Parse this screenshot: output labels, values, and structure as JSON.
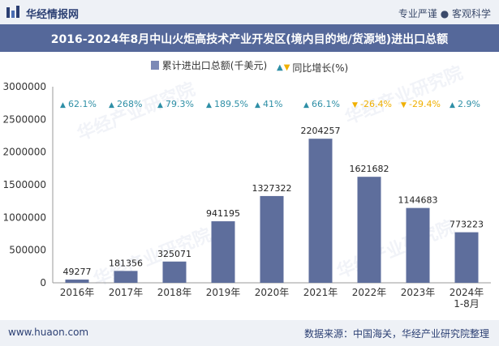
{
  "header": {
    "brand": "华经情报网",
    "tagline": "专业严谨 ● 客观科学"
  },
  "watermark": "华经产业研究院",
  "chart_data": {
    "type": "bar",
    "title": "2016-2024年8月中山火炬高技术产业开发区(境内目的地/货源地)进出口总额",
    "categories": [
      "2016年",
      "2017年",
      "2018年",
      "2019年",
      "2020年",
      "2021年",
      "2022年",
      "2023年",
      "2024年\n1-8月"
    ],
    "series": [
      {
        "name": "累计进出口总额(千美元)",
        "values": [
          49277,
          181356,
          325071,
          941195,
          1327322,
          2204257,
          1621682,
          1144683,
          773223
        ],
        "value_labels": [
          "49277",
          "181356",
          "325071",
          "941195",
          "1327322",
          "2204257",
          "1621682",
          "1144683",
          "773223"
        ],
        "color": "#5e6e9c"
      }
    ],
    "growth": {
      "name": "同比增长(%)",
      "values": [
        62.1,
        268,
        79.3,
        189.5,
        41,
        66.1,
        -26.4,
        -29.4,
        2.9
      ],
      "labels": [
        "62.1%",
        "268%",
        "79.3%",
        "189.5%",
        "41%",
        "66.1%",
        "-26.4%",
        "-29.4%",
        "2.9%"
      ],
      "up_color": "#2e8fa6",
      "down_color": "#f0b000"
    },
    "ylim": [
      0,
      3000000
    ],
    "yticks": [
      "0",
      "500000",
      "1000000",
      "1500000",
      "2000000",
      "2500000",
      "3000000"
    ],
    "legend_position": "top-center",
    "grid": false
  },
  "footer": {
    "site": "www.huaon.com",
    "source": "数据来源：中国海关，华经产业研究院整理"
  }
}
